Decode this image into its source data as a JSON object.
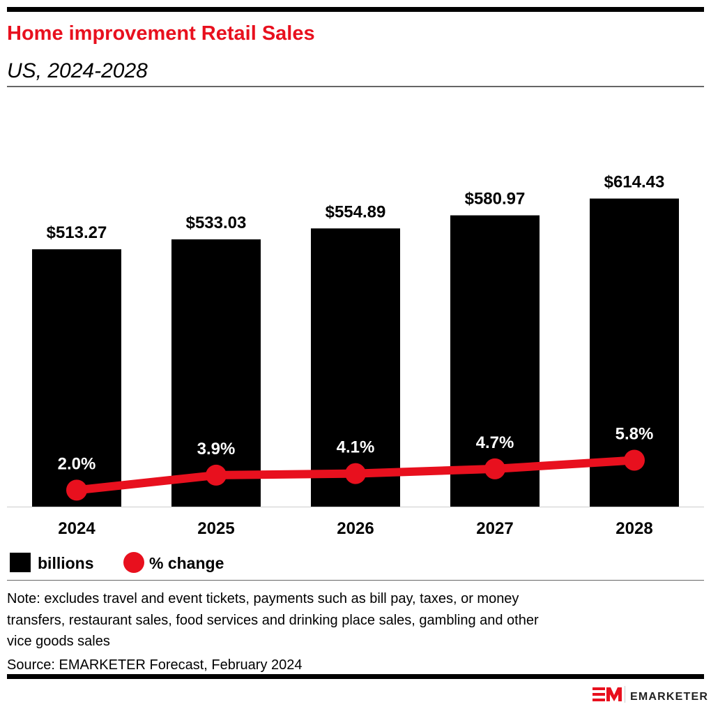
{
  "title": "Home improvement Retail Sales",
  "subtitle": "US, 2024-2028",
  "colors": {
    "accent": "#e8101e",
    "bar": "#000000",
    "line": "#e8101e"
  },
  "chart_data": {
    "type": "bar",
    "categories": [
      "2024",
      "2025",
      "2026",
      "2027",
      "2028"
    ],
    "series": [
      {
        "name": "billions",
        "type": "bar",
        "values": [
          513.27,
          533.03,
          554.89,
          580.97,
          614.43
        ],
        "labels": [
          "$513.27",
          "$533.03",
          "$554.89",
          "$580.97",
          "$614.43"
        ]
      },
      {
        "name": "% change",
        "type": "line",
        "values": [
          2.0,
          3.9,
          4.1,
          4.7,
          5.8
        ],
        "labels": [
          "2.0%",
          "3.9%",
          "4.1%",
          "4.7%",
          "5.8%"
        ]
      }
    ],
    "grid": false,
    "legend_placement": "bottom-left"
  },
  "legend": {
    "bar_label": "billions",
    "line_label": "% change"
  },
  "note": [
    "Note: excludes travel and event tickets, payments such as bill pay, taxes, or money",
    "transfers, restaurant sales, food services and drinking place sales, gambling and other",
    "vice goods sales"
  ],
  "source": "Source: EMARKETER Forecast, February 2024",
  "logo": {
    "text": "EMARKETER"
  }
}
